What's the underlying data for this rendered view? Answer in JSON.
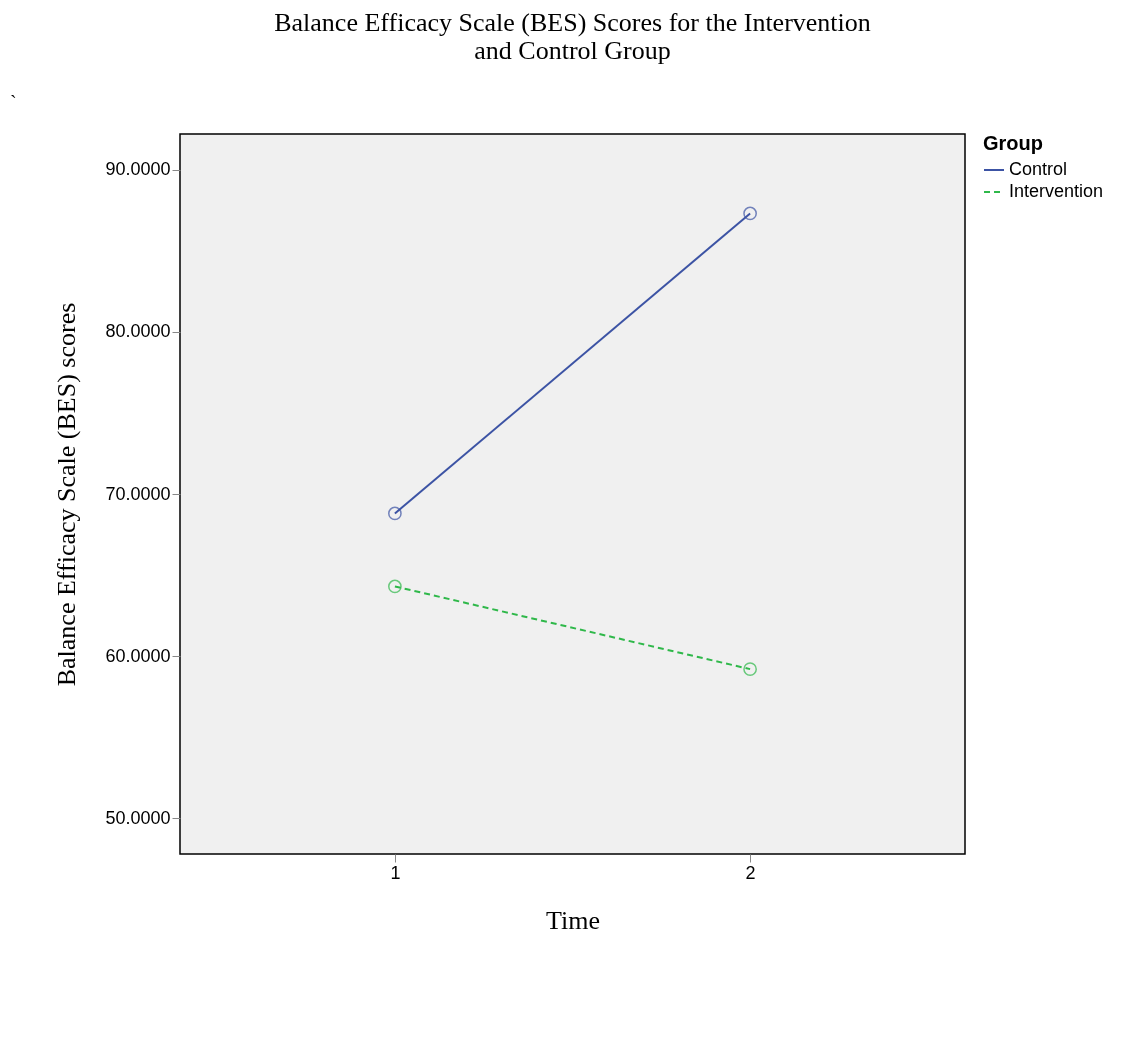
{
  "chart_data": {
    "type": "line",
    "title": [
      "Balance Efficacy Scale (BES) Scores for the Intervention",
      "and Control Group"
    ],
    "xlabel": "Time",
    "ylabel": "Balance Efficacy Scale (BES) scores",
    "legend_title": "Group",
    "categories": [
      "1",
      "2"
    ],
    "series": [
      {
        "name": "Control",
        "color": "#3c53a4",
        "values": [
          68.8,
          87.3
        ],
        "line_style": "solid"
      },
      {
        "name": "Intervention",
        "color": "#2fb84a",
        "values": [
          64.3,
          59.2
        ],
        "line_style": "dashed"
      }
    ],
    "ylim": [
      47.8,
      92.2
    ],
    "yticks": [
      {
        "value": 50,
        "label": "50.0000"
      },
      {
        "value": 60,
        "label": "60.0000"
      },
      {
        "value": 70,
        "label": "70.0000"
      },
      {
        "value": 80,
        "label": "80.0000"
      },
      {
        "value": 90,
        "label": "90.0000"
      }
    ],
    "grid": false,
    "legend": "top right",
    "marker": "circle",
    "annotations": [
      "`"
    ]
  }
}
